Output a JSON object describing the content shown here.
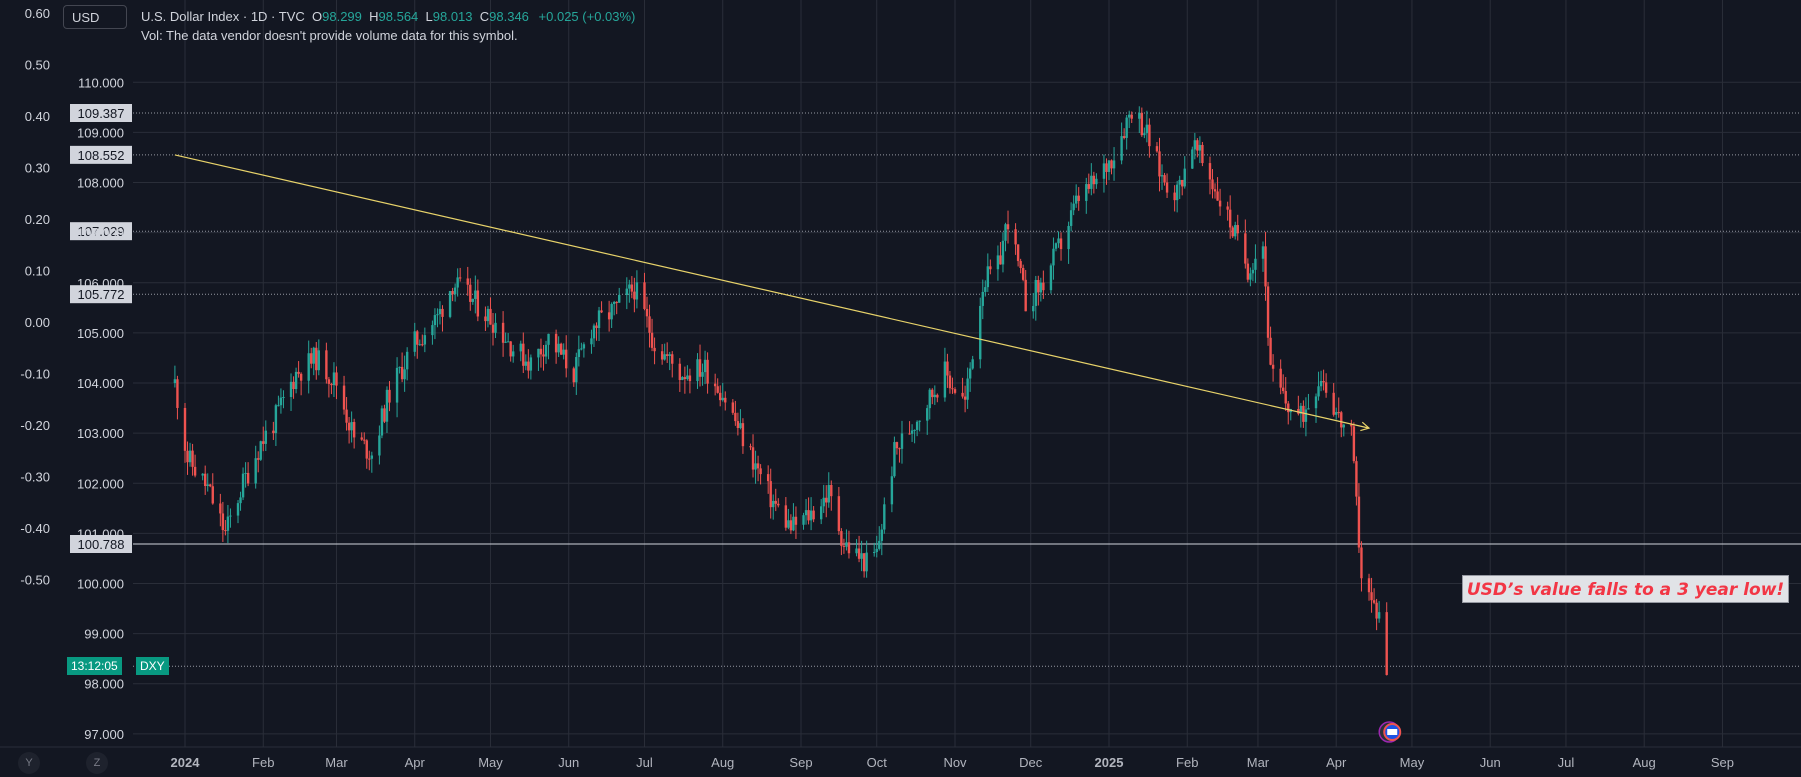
{
  "header": {
    "symbol_box": "USD",
    "title": "U.S. Dollar Index · 1D · TVC",
    "o_label": "O",
    "o_value": "98.299",
    "h_label": "H",
    "h_value": "98.564",
    "l_label": "L",
    "l_value": "98.013",
    "c_label": "C",
    "c_value": "98.346",
    "change": "+0.025 (+0.03%)",
    "volume_note": "Vol: The data vendor doesn't provide volume data for this symbol."
  },
  "annotation": {
    "text": "USD’s value falls to a 3 year low!"
  },
  "clock": {
    "time": "13:12:05",
    "symbol": "DXY"
  },
  "scale_toggles": {
    "y": "Y",
    "z": "Z"
  },
  "colors": {
    "up": "#26a69a",
    "down": "#ef5350",
    "trend": "#e8d36a",
    "background": "#131722",
    "grid": "#2a2e39"
  },
  "chart_data": {
    "type": "candlestick",
    "title": "U.S. Dollar Index · 1D · TVC",
    "price_axis": {
      "ticks": [
        "110.000",
        "109.000",
        "108.000",
        "107.000",
        "106.000",
        "105.000",
        "104.000",
        "103.000",
        "102.000",
        "101.000",
        "100.000",
        "99.000",
        "98.000",
        "97.000"
      ],
      "ylim": [
        96.6,
        111.4
      ]
    },
    "percent_axis": {
      "ticks": [
        "0.60",
        "0.50",
        "0.40",
        "0.30",
        "0.20",
        "0.10",
        "0.00",
        "-0.10",
        "-0.20",
        "-0.30",
        "-0.40",
        "-0.50"
      ]
    },
    "time_axis": [
      "2024",
      "Feb",
      "Mar",
      "Apr",
      "May",
      "Jun",
      "Jul",
      "Aug",
      "Sep",
      "Oct",
      "Nov",
      "Dec",
      "2025",
      "Feb",
      "Mar",
      "Apr",
      "May",
      "Jun",
      "Jul",
      "Aug",
      "Sep"
    ],
    "horizontal_lines": [
      {
        "label": "109.387",
        "value": 109.387,
        "style": "dotted"
      },
      {
        "label": "108.552",
        "value": 108.552,
        "style": "dotted"
      },
      {
        "label": "107.029",
        "value": 107.029,
        "style": "dotted"
      },
      {
        "label": "105.772",
        "value": 105.772,
        "style": "dotted"
      },
      {
        "label": "100.788",
        "value": 100.788,
        "style": "solid"
      },
      {
        "label": "",
        "value": 98.35,
        "style": "dotted"
      }
    ],
    "trendline": {
      "start": {
        "date": "2023-12-28",
        "value": 108.55
      },
      "end": {
        "date": "2025-04-14",
        "value": 103.1
      }
    },
    "close_path": [
      [
        "2023-12-28",
        104.0
      ],
      [
        "2024-01-02",
        102.5
      ],
      [
        "2024-01-10",
        101.9
      ],
      [
        "2024-01-17",
        101.0
      ],
      [
        "2024-01-24",
        102.0
      ],
      [
        "2024-01-31",
        102.8
      ],
      [
        "2024-02-05",
        103.2
      ],
      [
        "2024-02-14",
        104.2
      ],
      [
        "2024-02-22",
        104.5
      ],
      [
        "2024-03-01",
        104.0
      ],
      [
        "2024-03-08",
        102.9
      ],
      [
        "2024-03-15",
        102.6
      ],
      [
        "2024-03-22",
        103.8
      ],
      [
        "2024-04-01",
        104.8
      ],
      [
        "2024-04-10",
        105.3
      ],
      [
        "2024-04-16",
        106.0
      ],
      [
        "2024-04-25",
        105.6
      ],
      [
        "2024-05-03",
        105.2
      ],
      [
        "2024-05-10",
        104.7
      ],
      [
        "2024-05-17",
        104.4
      ],
      [
        "2024-05-24",
        104.9
      ],
      [
        "2024-06-03",
        104.2
      ],
      [
        "2024-06-10",
        105.1
      ],
      [
        "2024-06-20",
        105.5
      ],
      [
        "2024-06-27",
        105.9
      ],
      [
        "2024-07-05",
        104.8
      ],
      [
        "2024-07-15",
        104.2
      ],
      [
        "2024-07-25",
        104.3
      ],
      [
        "2024-08-01",
        103.8
      ],
      [
        "2024-08-09",
        102.9
      ],
      [
        "2024-08-20",
        101.7
      ],
      [
        "2024-08-28",
        101.1
      ],
      [
        "2024-09-05",
        101.4
      ],
      [
        "2024-09-12",
        101.8
      ],
      [
        "2024-09-18",
        100.8
      ],
      [
        "2024-09-27",
        100.4
      ],
      [
        "2024-10-01",
        100.6
      ],
      [
        "2024-10-08",
        102.6
      ],
      [
        "2024-10-18",
        103.4
      ],
      [
        "2024-10-28",
        104.2
      ],
      [
        "2024-11-05",
        103.6
      ],
      [
        "2024-11-12",
        106.0
      ],
      [
        "2024-11-18",
        106.3
      ],
      [
        "2024-11-22",
        107.3
      ],
      [
        "2024-11-29",
        105.6
      ],
      [
        "2024-12-06",
        106.0
      ],
      [
        "2024-12-13",
        106.8
      ],
      [
        "2024-12-20",
        107.7
      ],
      [
        "2024-12-27",
        108.0
      ],
      [
        "2025-01-03",
        108.6
      ],
      [
        "2025-01-10",
        109.5
      ],
      [
        "2025-01-15",
        109.1
      ],
      [
        "2025-01-22",
        108.1
      ],
      [
        "2025-01-28",
        107.8
      ],
      [
        "2025-02-03",
        108.8
      ],
      [
        "2025-02-10",
        108.1
      ],
      [
        "2025-02-18",
        107.2
      ],
      [
        "2025-02-25",
        106.3
      ],
      [
        "2025-03-03",
        106.8
      ],
      [
        "2025-03-06",
        104.2
      ],
      [
        "2025-03-12",
        103.6
      ],
      [
        "2025-03-18",
        103.3
      ],
      [
        "2025-03-26",
        104.2
      ],
      [
        "2025-04-02",
        103.3
      ],
      [
        "2025-04-07",
        102.9
      ],
      [
        "2025-04-11",
        100.2
      ],
      [
        "2025-04-15",
        99.6
      ],
      [
        "2025-04-18",
        99.4
      ],
      [
        "2025-04-21",
        98.3
      ]
    ]
  }
}
